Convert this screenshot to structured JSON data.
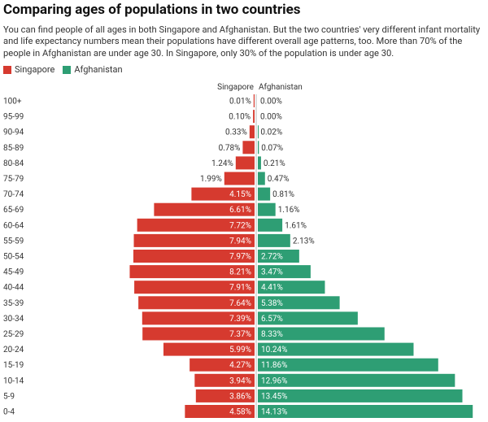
{
  "title": "Comparing ages of populations in two countries",
  "subtitle": "You can find people of all ages in both Singapore and Afghanistan. But the two countries' very different infant mortality and life expectancy numbers mean their populations have different overall age patterns, too. More than 70% of the people in Afghanistan are under age 30. In Singapore, only 30% of the population is under age 30.",
  "legend": [
    {
      "label": "Singapore",
      "color": "#d63a2f"
    },
    {
      "label": "Afghanistan",
      "color": "#2e9e74"
    }
  ],
  "chart_data": {
    "type": "bar",
    "orientation": "horizontal-butterfly",
    "categories": [
      "100+",
      "95-99",
      "90-94",
      "85-89",
      "80-84",
      "75-79",
      "70-74",
      "65-69",
      "60-64",
      "55-59",
      "50-54",
      "45-49",
      "40-44",
      "35-39",
      "30-34",
      "25-29",
      "20-24",
      "15-19",
      "10-14",
      "5-9",
      "0-4"
    ],
    "series": [
      {
        "name": "Singapore",
        "color": "#d63a2f",
        "values": [
          0.01,
          0.1,
          0.33,
          0.78,
          1.24,
          1.99,
          4.15,
          6.61,
          7.72,
          7.94,
          7.97,
          8.21,
          7.91,
          7.64,
          7.39,
          7.37,
          5.99,
          4.27,
          3.94,
          3.86,
          4.58
        ]
      },
      {
        "name": "Afghanistan",
        "color": "#2e9e74",
        "values": [
          0.0,
          0.0,
          0.02,
          0.07,
          0.21,
          0.47,
          0.81,
          1.16,
          1.61,
          2.13,
          2.72,
          3.47,
          4.41,
          5.38,
          6.57,
          8.33,
          10.24,
          11.86,
          12.96,
          13.45,
          14.13
        ]
      }
    ],
    "column_headers": [
      "Singapore",
      "Afghanistan"
    ],
    "value_suffix": "%"
  }
}
